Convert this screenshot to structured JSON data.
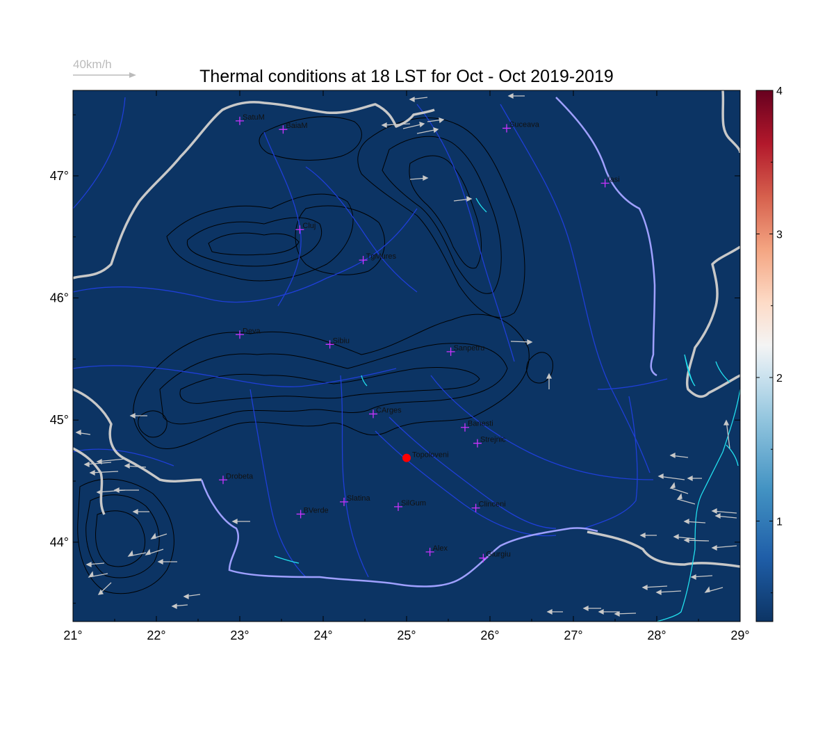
{
  "title": "Thermal conditions at 18 LST for Oct - Oct  2019-2019",
  "wind_reference": {
    "label": "40km/h"
  },
  "colors": {
    "map_fill": "#0c3464",
    "river": "#1f3fd8",
    "border": "#c8c8c8",
    "danube": "#9fa0ff",
    "coast": "#22e0ee",
    "contour": "#000000",
    "wind_arrow": "#c8c8c8",
    "city_marker": "#cc33ff",
    "highlight_point": "#ff0000"
  },
  "chart_data": {
    "type": "map",
    "x_axis": {
      "range": [
        21,
        29
      ],
      "ticks": [
        {
          "value": 21,
          "label": "21°"
        },
        {
          "value": 22,
          "label": "22°"
        },
        {
          "value": 23,
          "label": "23°"
        },
        {
          "value": 24,
          "label": "24°"
        },
        {
          "value": 25,
          "label": "25°"
        },
        {
          "value": 26,
          "label": "26°"
        },
        {
          "value": 27,
          "label": "27°"
        },
        {
          "value": 28,
          "label": "28°"
        },
        {
          "value": 29,
          "label": "29°"
        }
      ]
    },
    "y_axis": {
      "range": [
        43.35,
        47.7
      ],
      "ticks": [
        {
          "value": 44,
          "label": "44°"
        },
        {
          "value": 45,
          "label": "45°"
        },
        {
          "value": 46,
          "label": "46°"
        },
        {
          "value": 47,
          "label": "47°"
        }
      ]
    },
    "colorbar": {
      "range": [
        0.3,
        4
      ],
      "ticks": [
        {
          "value": 1,
          "label": "1"
        },
        {
          "value": 2,
          "label": "2"
        },
        {
          "value": 3,
          "label": "3"
        },
        {
          "value": 4,
          "label": "4"
        }
      ],
      "colormap": "RdBu_r"
    },
    "cities": [
      {
        "name": "SatuM",
        "lon": 23.0,
        "lat": 47.45
      },
      {
        "name": "BaiaM",
        "lon": 23.52,
        "lat": 47.38
      },
      {
        "name": "Suceava",
        "lon": 26.2,
        "lat": 47.39
      },
      {
        "name": "Iasi",
        "lon": 27.38,
        "lat": 46.94
      },
      {
        "name": "Cluj",
        "lon": 23.72,
        "lat": 46.56
      },
      {
        "name": "TgMures",
        "lon": 24.48,
        "lat": 46.31
      },
      {
        "name": "Deva",
        "lon": 23.0,
        "lat": 45.7
      },
      {
        "name": "Sibiu",
        "lon": 24.08,
        "lat": 45.62
      },
      {
        "name": "Sanpetru",
        "lon": 25.53,
        "lat": 45.56
      },
      {
        "name": "CArges",
        "lon": 24.6,
        "lat": 45.05
      },
      {
        "name": "Banesti",
        "lon": 25.7,
        "lat": 44.94
      },
      {
        "name": "Strejnic",
        "lon": 25.85,
        "lat": 44.81
      },
      {
        "name": "Drobeta",
        "lon": 22.8,
        "lat": 44.51
      },
      {
        "name": "Slatina",
        "lon": 24.25,
        "lat": 44.33
      },
      {
        "name": "SilGum",
        "lon": 24.9,
        "lat": 44.29
      },
      {
        "name": "Clinceni",
        "lon": 25.83,
        "lat": 44.28
      },
      {
        "name": "BVerde",
        "lon": 23.73,
        "lat": 44.23
      },
      {
        "name": "Alex",
        "lon": 25.28,
        "lat": 43.92
      },
      {
        "name": "Giurgiu",
        "lon": 25.92,
        "lat": 43.87
      }
    ],
    "highlight_point": {
      "name": "Topoloveni",
      "lon": 25.0,
      "lat": 44.69
    }
  }
}
